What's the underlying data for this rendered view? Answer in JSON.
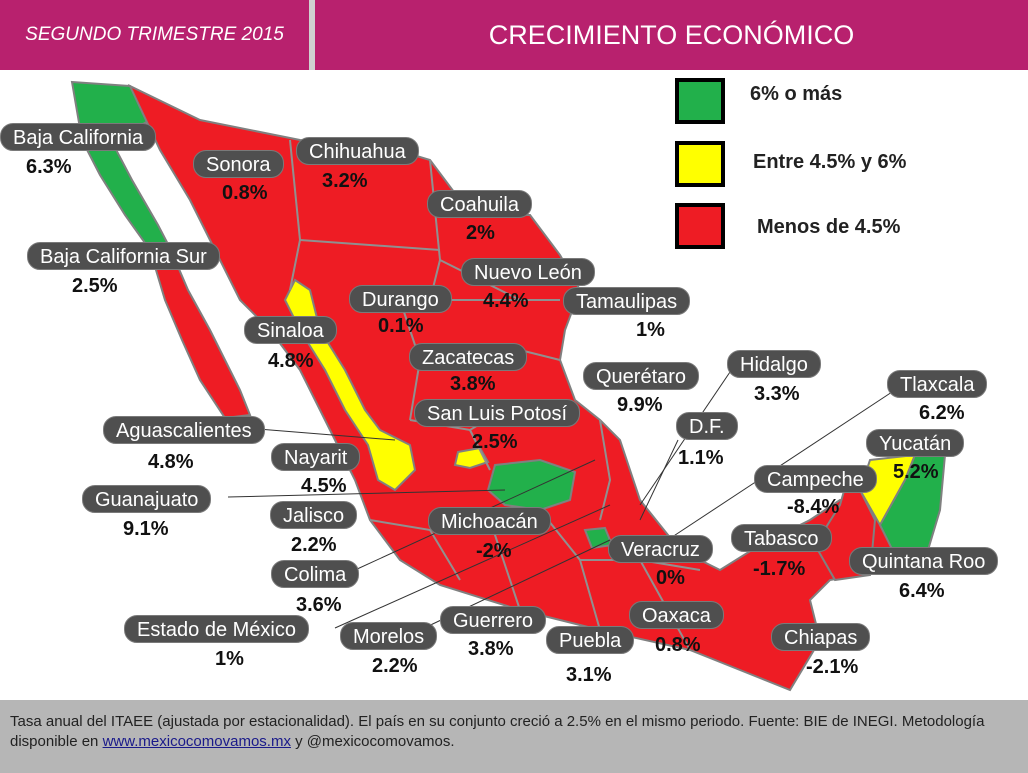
{
  "header": {
    "period": "SEGUNDO TRIMESTRE 2015",
    "title": "CRECIMIENTO ECONÓMICO"
  },
  "colors": {
    "header_bg": "#b8216e",
    "green": "#22b04b",
    "yellow": "#ffff00",
    "red": "#ee1c24",
    "pill": "#4f4f4f"
  },
  "legend": [
    {
      "label": "6% o más",
      "color": "#22b04b"
    },
    {
      "label": "Entre 4.5% y 6%",
      "color": "#ffff00"
    },
    {
      "label": "Menos de 4.5%",
      "color": "#ee1c24"
    }
  ],
  "states": [
    {
      "name": "Baja California",
      "value": "6.3%",
      "category": "green"
    },
    {
      "name": "Sonora",
      "value": "0.8%",
      "category": "red"
    },
    {
      "name": "Chihuahua",
      "value": "3.2%",
      "category": "red"
    },
    {
      "name": "Coahuila",
      "value": "2%",
      "category": "red"
    },
    {
      "name": "Baja California Sur",
      "value": "2.5%",
      "category": "red"
    },
    {
      "name": "Nuevo León",
      "value": "4.4%",
      "category": "red"
    },
    {
      "name": "Durango",
      "value": "0.1%",
      "category": "red"
    },
    {
      "name": "Tamaulipas",
      "value": "1%",
      "category": "red"
    },
    {
      "name": "Sinaloa",
      "value": "4.8%",
      "category": "yellow"
    },
    {
      "name": "Zacatecas",
      "value": "3.8%",
      "category": "red"
    },
    {
      "name": "Querétaro",
      "value": "9.9%",
      "category": "green"
    },
    {
      "name": "Hidalgo",
      "value": "3.3%",
      "category": "red"
    },
    {
      "name": "San Luis Potosí",
      "value": "2.5%",
      "category": "red"
    },
    {
      "name": "Tlaxcala",
      "value": "6.2%",
      "category": "green"
    },
    {
      "name": "Aguascalientes",
      "value": "4.8%",
      "category": "yellow"
    },
    {
      "name": "D.F.",
      "value": "1.1%",
      "category": "red"
    },
    {
      "name": "Yucatán",
      "value": "5.2%",
      "category": "yellow"
    },
    {
      "name": "Nayarit",
      "value": "4.5%",
      "category": "yellow"
    },
    {
      "name": "Campeche",
      "value": "-8.4%",
      "category": "red"
    },
    {
      "name": "Guanajuato",
      "value": "9.1%",
      "category": "green"
    },
    {
      "name": "Jalisco",
      "value": "2.2%",
      "category": "red"
    },
    {
      "name": "Michoacán",
      "value": "-2%",
      "category": "red"
    },
    {
      "name": "Tabasco",
      "value": "-1.7%",
      "category": "red"
    },
    {
      "name": "Veracruz",
      "value": "0%",
      "category": "red"
    },
    {
      "name": "Quintana Roo",
      "value": "6.4%",
      "category": "green"
    },
    {
      "name": "Colima",
      "value": "3.6%",
      "category": "red"
    },
    {
      "name": "Guerrero",
      "value": "3.8%",
      "category": "red"
    },
    {
      "name": "Oaxaca",
      "value": "0.8%",
      "category": "red"
    },
    {
      "name": "Estado de México",
      "value": "1%",
      "category": "red"
    },
    {
      "name": "Morelos",
      "value": "2.2%",
      "category": "red"
    },
    {
      "name": "Puebla",
      "value": "3.1%",
      "category": "red"
    },
    {
      "name": "Chiapas",
      "value": "-2.1%",
      "category": "red"
    }
  ],
  "footer": {
    "text_before_link": "Tasa anual del ITAEE (ajustada por estacionalidad). El país en su conjunto creció a 2.5% en el mismo periodo. Fuente: BIE de INEGI. Metodología disponible en ",
    "link": "www.mexicocomovamos.mx",
    "text_after_link": "  y @mexicocomovamos."
  }
}
